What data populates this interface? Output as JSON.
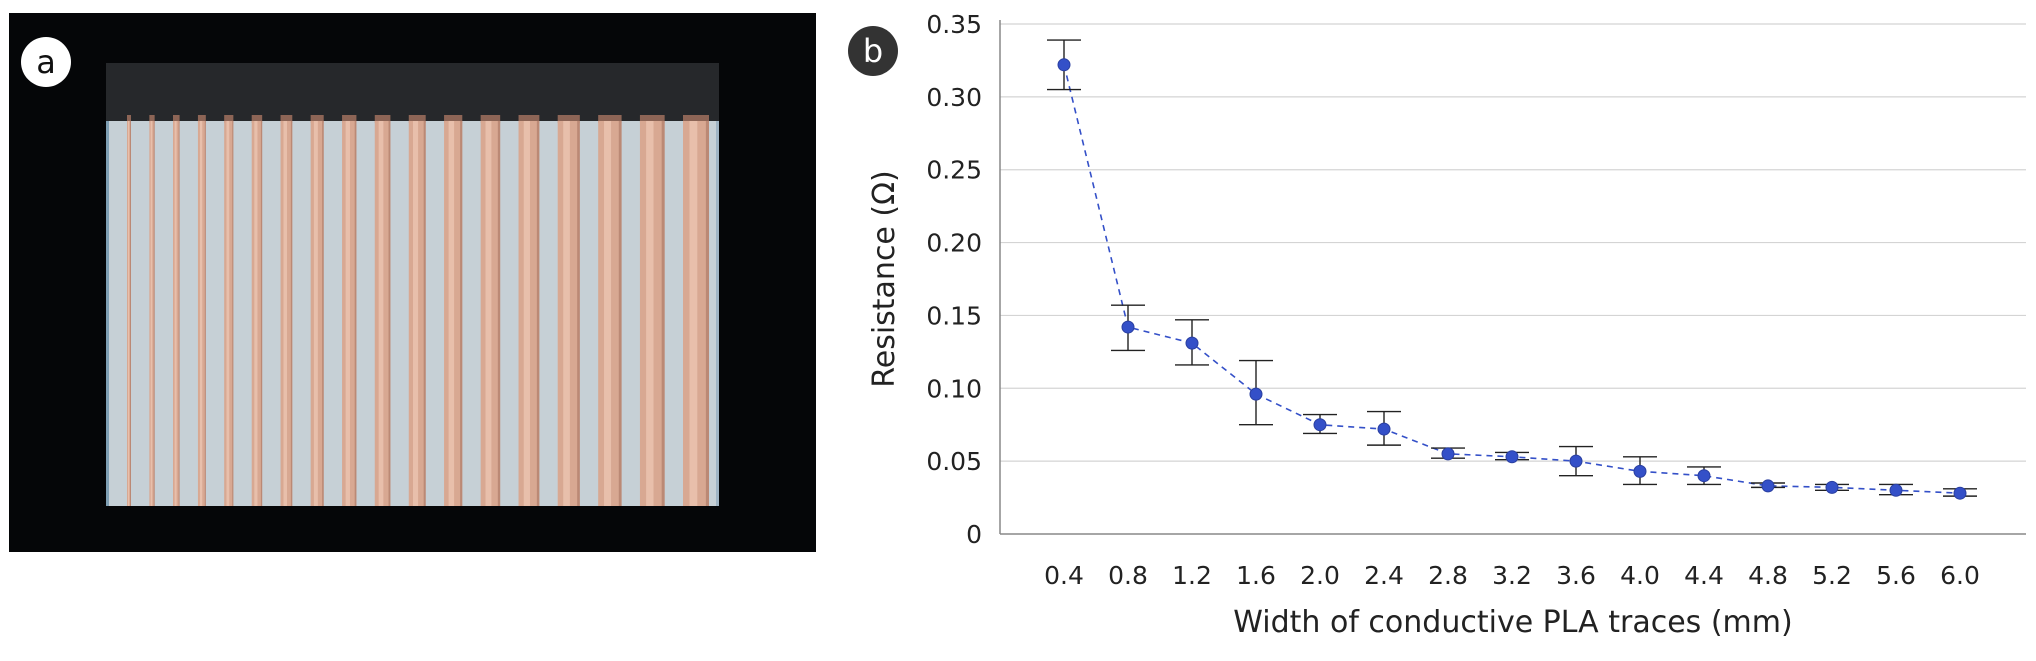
{
  "panel_a": {
    "label": "a",
    "photo_description_hidden": null,
    "trace_count": 18,
    "colors": {
      "background": "#050608",
      "substrate": "#c6d0d6",
      "substrate_edge": "#7f9fb4",
      "header": "#26282b",
      "trace": "#d8a892",
      "trace_highlight": "#f0c9b6",
      "trace_shadow": "#a87462"
    }
  },
  "panel_b": {
    "label": "b"
  },
  "chart_data": {
    "type": "scatter",
    "title": "",
    "xlabel": "Width of conductive PLA traces (mm)",
    "ylabel": "Resistance (Ω)",
    "ylim": [
      0,
      0.35
    ],
    "yticks": [
      0,
      0.05,
      0.1,
      0.15,
      0.2,
      0.25,
      0.3,
      0.35
    ],
    "ytick_labels": [
      "0",
      "0.05",
      "0.10",
      "0.15",
      "0.20",
      "0.25",
      "0.30",
      "0.35"
    ],
    "grid": "horizontal",
    "line_style": "dashed",
    "categories": [
      "0.4",
      "0.8",
      "1.2",
      "1.6",
      "2.0",
      "2.4",
      "2.8",
      "3.2",
      "3.6",
      "4.0",
      "4.4",
      "4.8",
      "5.2",
      "5.6",
      "6.0"
    ],
    "values": [
      0.322,
      0.142,
      0.131,
      0.096,
      0.075,
      0.072,
      0.055,
      0.053,
      0.05,
      0.043,
      0.04,
      0.033,
      0.032,
      0.03,
      0.028
    ],
    "error_low": [
      0.305,
      0.126,
      0.116,
      0.075,
      0.069,
      0.061,
      0.052,
      0.051,
      0.04,
      0.034,
      0.034,
      0.032,
      0.03,
      0.027,
      0.026
    ],
    "error_high": [
      0.339,
      0.157,
      0.147,
      0.119,
      0.082,
      0.084,
      0.059,
      0.056,
      0.06,
      0.053,
      0.046,
      0.035,
      0.034,
      0.034,
      0.031
    ],
    "colors": {
      "marker": "#3450c8",
      "line": "#3450c8",
      "error_bar": "#222222",
      "grid": "#d4d4d4",
      "axis": "#888888",
      "text": "#222222"
    }
  }
}
